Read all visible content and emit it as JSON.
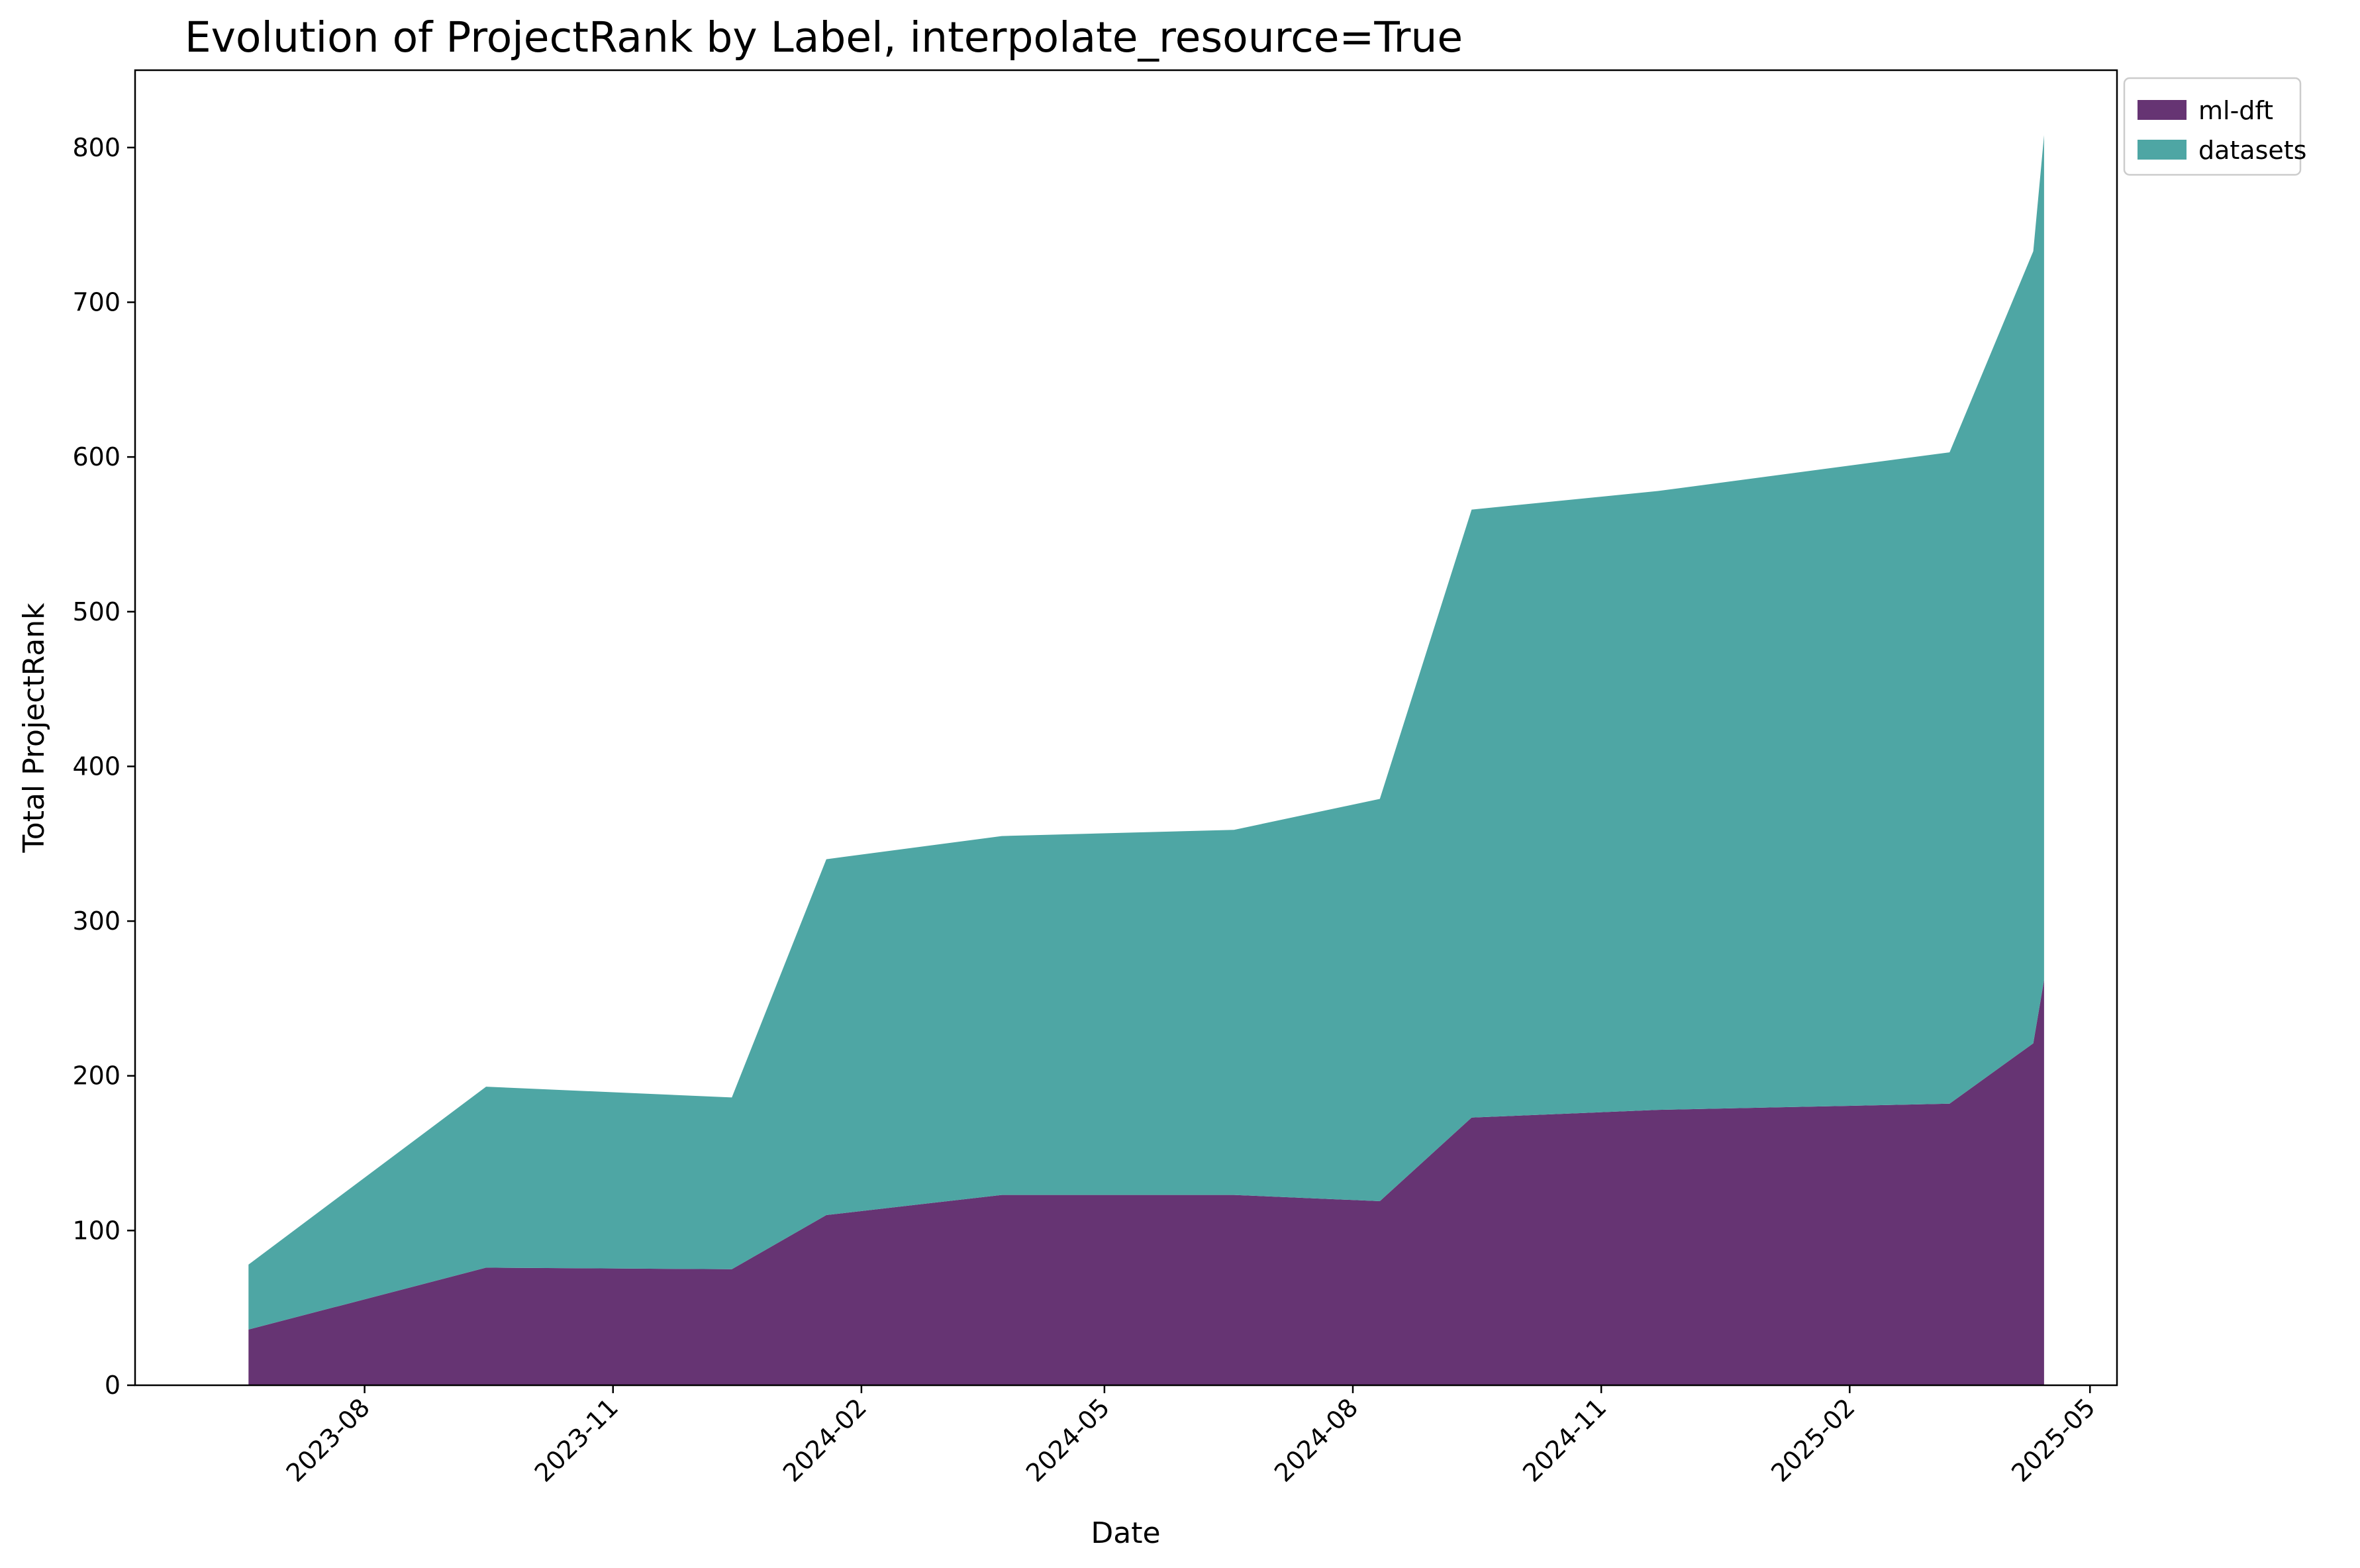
{
  "chart_data": {
    "type": "area",
    "stacked": true,
    "title": "Evolution of ProjectRank by Label, interpolate_resource=True",
    "xlabel": "Date",
    "ylabel": "Total ProjectRank",
    "x_scale": "date",
    "xlim": [
      "2023-05-08",
      "2025-05-11"
    ],
    "ylim": [
      0,
      850
    ],
    "xticks": [
      "2023-08-01",
      "2023-11-01",
      "2024-02-01",
      "2024-05-01",
      "2024-08-01",
      "2024-11-01",
      "2025-02-01",
      "2025-05-01"
    ],
    "xtick_labels": [
      "2023-08",
      "2023-11",
      "2024-02",
      "2024-05",
      "2024-08",
      "2024-11",
      "2025-02",
      "2025-05"
    ],
    "yticks": [
      0,
      100,
      200,
      300,
      400,
      500,
      600,
      700,
      800
    ],
    "ytick_labels": [
      "0",
      "100",
      "200",
      "300",
      "400",
      "500",
      "600",
      "700",
      "800"
    ],
    "grid": false,
    "legend_position": "upper-right-outside",
    "x": [
      "2023-06-19",
      "2023-09-15",
      "2023-12-15",
      "2024-01-19",
      "2024-03-24",
      "2024-06-18",
      "2024-08-11",
      "2024-09-14",
      "2024-11-22",
      "2025-03-10",
      "2025-04-10",
      "2025-04-14"
    ],
    "series": [
      {
        "name": "ml-dft",
        "color": "#663473",
        "values": [
          36,
          76,
          75,
          110,
          123,
          123,
          119,
          173,
          178,
          182,
          221,
          262
        ]
      },
      {
        "name": "datasets",
        "color": "#4ea6a4",
        "values": [
          42,
          117,
          111,
          230,
          232,
          236,
          260,
          393,
          400,
          421,
          512,
          546
        ]
      }
    ]
  }
}
